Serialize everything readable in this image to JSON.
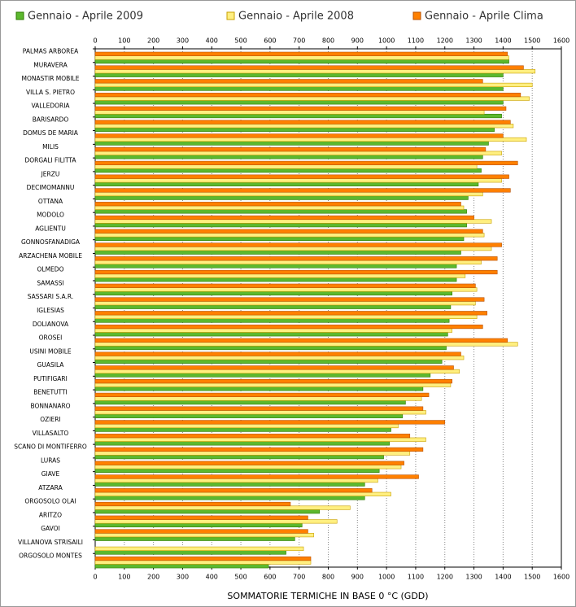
{
  "chart_data": {
    "type": "hbar",
    "x_label": "SOMMATORIE TERMICHE IN BASE 0 °C (GDD)",
    "categories": [
      "PALMAS ARBOREA",
      "MURAVERA",
      "MONASTIR MOBILE",
      "VILLA S. PIETRO",
      "VALLEDORIA",
      "BARISARDO",
      "DOMUS DE MARIA",
      "MILIS",
      "DORGALI FILITTA",
      "JERZU",
      "DECIMOMANNU",
      "OTTANA",
      "MODOLO",
      "AGLIENTU",
      "GONNOSFANADIGA",
      "ARZACHENA MOBILE",
      "OLMEDO",
      "SAMASSI",
      "SASSARI S.A.R.",
      "IGLESIAS",
      "DOLIANOVA",
      "OROSEI",
      "USINI MOBILE",
      "GUASILA",
      "PUTIFIGARI",
      "BENETUTTI",
      "BONNANARO",
      "OZIERI",
      "VILLASALTO",
      "SCANO DI MONTIFERRO",
      "LURAS",
      "GIAVE",
      "ATZARA",
      "ORGOSOLO OLAI",
      "ARITZO",
      "GAVOI",
      "VILLANOVA STRISAILI",
      "ORGOSOLO MONTES"
    ],
    "series": [
      {
        "name": "Gennaio - Aprile 2009",
        "color": "#5cb82e",
        "values": [
          1420,
          1400,
          1400,
          1400,
          1395,
          1370,
          1350,
          1330,
          1325,
          1315,
          1280,
          1275,
          1275,
          1265,
          1255,
          1240,
          1240,
          1225,
          1220,
          1215,
          1210,
          1205,
          1190,
          1150,
          1125,
          1065,
          1055,
          1015,
          1010,
          990,
          975,
          925,
          925,
          770,
          710,
          685,
          655,
          595
        ]
      },
      {
        "name": "Gennaio - Aprile 2008",
        "color": "#ffef80",
        "values": [
          1420,
          1510,
          1500,
          1490,
          1335,
          1435,
          1480,
          1395,
          1310,
          1395,
          1330,
          1265,
          1360,
          1335,
          1360,
          1325,
          1270,
          1310,
          1305,
          1310,
          1225,
          1450,
          1265,
          1250,
          1220,
          1120,
          1135,
          1040,
          1135,
          1080,
          1050,
          970,
          1015,
          875,
          830,
          750,
          715,
          740
        ]
      },
      {
        "name": "Gennaio - Aprile Clima",
        "color": "#ff8000",
        "values": [
          1415,
          1470,
          1330,
          1460,
          1410,
          1425,
          1400,
          1340,
          1450,
          1420,
          1425,
          1255,
          1300,
          1330,
          1395,
          1380,
          1380,
          1305,
          1335,
          1345,
          1330,
          1415,
          1255,
          1230,
          1225,
          1145,
          1125,
          1200,
          1080,
          1125,
          1060,
          1110,
          950,
          670,
          730,
          730,
          null,
          740
        ]
      }
    ],
    "xlim": [
      0,
      1600
    ],
    "xticks": [
      0,
      100,
      200,
      300,
      400,
      500,
      600,
      700,
      800,
      900,
      1000,
      1100,
      1200,
      1300,
      1400,
      1500,
      1600
    ],
    "grid": true,
    "legend": "top"
  }
}
